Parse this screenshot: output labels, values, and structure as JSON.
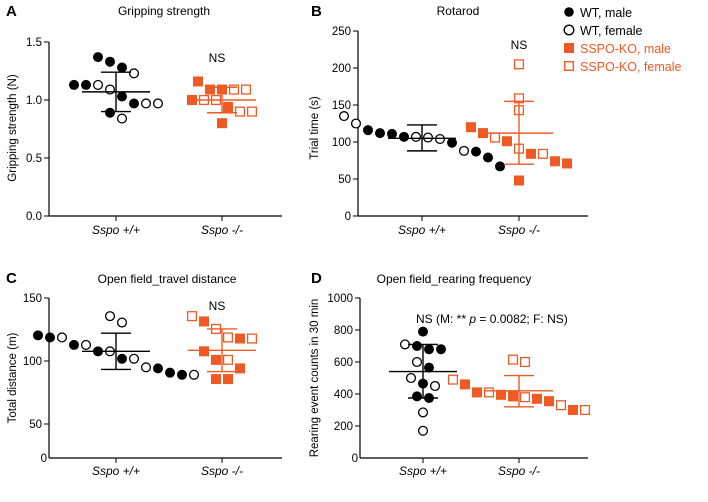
{
  "legend": {
    "items": [
      {
        "label": "WT, male",
        "color": "#000000",
        "filled": true,
        "shape": "circle"
      },
      {
        "label": "WT, female",
        "color": "#000000",
        "filled": false,
        "shape": "circle"
      },
      {
        "label": "SSPO-KO, male",
        "color": "#ee5a24",
        "filled": true,
        "shape": "square"
      },
      {
        "label": "SSPO-KO, female",
        "color": "#ee5a24",
        "filled": false,
        "shape": "square"
      }
    ]
  },
  "chart_data": [
    {
      "panel": "A",
      "type": "scatter",
      "title": "Gripping strength",
      "ylabel": "Gripping strength (N)",
      "categories": [
        "Sspo +/+",
        "Sspo -/-"
      ],
      "ylim": [
        0,
        1.5
      ],
      "yticks": [
        0.0,
        0.5,
        1.0,
        1.5
      ],
      "ytick_labels": [
        "0.0",
        "0.5",
        "1.0",
        "1.5"
      ],
      "annotation": "NS",
      "groups": [
        {
          "category": "Sspo +/+",
          "mean": 1.07,
          "sd_upper": 1.24,
          "sd_lower": 0.9,
          "male": [
            1.37,
            1.33,
            1.28,
            1.13,
            1.13,
            1.03,
            0.97,
            0.89
          ],
          "female": [
            1.23,
            1.13,
            1.09,
            0.97,
            0.97,
            0.84
          ]
        },
        {
          "category": "Sspo -/-",
          "mean": 1.0,
          "sd_upper": 1.11,
          "sd_lower": 0.89,
          "male": [
            1.16,
            1.09,
            1.09,
            1.0,
            0.94,
            0.8
          ],
          "female": [
            1.09,
            1.09,
            1.0,
            1.0,
            0.9,
            0.9
          ]
        }
      ]
    },
    {
      "panel": "B",
      "type": "scatter",
      "title": "Rotarod",
      "ylabel": "Trial time (s)",
      "categories": [
        "Sspo +/+",
        "Sspo -/-"
      ],
      "ylim": [
        0,
        250
      ],
      "yticks": [
        0,
        50,
        100,
        150,
        200,
        250
      ],
      "ytick_labels": [
        "0",
        "50",
        "100",
        "150",
        "200",
        "250"
      ],
      "annotation": "NS",
      "groups": [
        {
          "category": "Sspo +/+",
          "mean": 105,
          "sd_upper": 123,
          "sd_lower": 88,
          "male": [
            116,
            112,
            111,
            107,
            99,
            87,
            79,
            67
          ],
          "female": [
            135,
            125,
            107,
            106,
            104,
            88
          ]
        },
        {
          "category": "Sspo -/-",
          "mean": 112,
          "sd_upper": 155,
          "sd_lower": 70,
          "male": [
            120,
            112,
            101,
            84,
            74,
            71,
            48
          ],
          "female": [
            205,
            159,
            143,
            106,
            91,
            84
          ]
        }
      ]
    },
    {
      "panel": "C",
      "type": "scatter",
      "title": "Open field_travel distance",
      "ylabel": "Total distance (m)",
      "categories": [
        "Sspo +/+",
        "Sspo -/-"
      ],
      "ylim": [
        0,
        150
      ],
      "yticks": [
        0,
        50,
        100,
        150
      ],
      "ytick_labels": [
        "0",
        "50",
        "100",
        "150"
      ],
      "annotation": "NS",
      "groups": [
        {
          "category": "Sspo +/+",
          "mean": 100,
          "sd_upper": 117,
          "sd_lower": 83,
          "male": [
            115,
            113,
            106,
            100,
            93,
            84,
            80,
            78
          ],
          "female": [
            133,
            127,
            113,
            106,
            100,
            93,
            85,
            78
          ]
        },
        {
          "category": "Sspo -/-",
          "mean": 101,
          "sd_upper": 121,
          "sd_lower": 81,
          "male": [
            128,
            112,
            100,
            92,
            84,
            74,
            74
          ],
          "female": [
            133,
            121,
            113,
            112,
            92
          ]
        }
      ]
    },
    {
      "panel": "D",
      "type": "scatter",
      "title": "Open field_rearing frequency",
      "ylabel": "Rearing event counts in 30 min",
      "categories": [
        "Sspo +/+",
        "Sspo -/-"
      ],
      "ylim": [
        0,
        1000
      ],
      "yticks": [
        0,
        200,
        400,
        600,
        800,
        1000
      ],
      "ytick_labels": [
        "0",
        "200",
        "400",
        "600",
        "800",
        "1000"
      ],
      "annotation_prefix": "NS (M: ** ",
      "annotation_p": "p",
      "annotation_suffix": " = 0.0082; F: NS)",
      "groups": [
        {
          "category": "Sspo +/+",
          "mean": 540,
          "sd_upper": 710,
          "sd_lower": 375,
          "male": [
            790,
            700,
            680,
            680,
            565,
            465,
            385,
            375
          ],
          "female": [
            710,
            600,
            500,
            450,
            285,
            170
          ]
        },
        {
          "category": "Sspo -/-",
          "mean": 420,
          "sd_upper": 515,
          "sd_lower": 320,
          "male": [
            460,
            410,
            395,
            385,
            370,
            355,
            300
          ],
          "female": [
            615,
            600,
            490,
            410,
            380,
            330,
            300
          ]
        }
      ]
    }
  ]
}
